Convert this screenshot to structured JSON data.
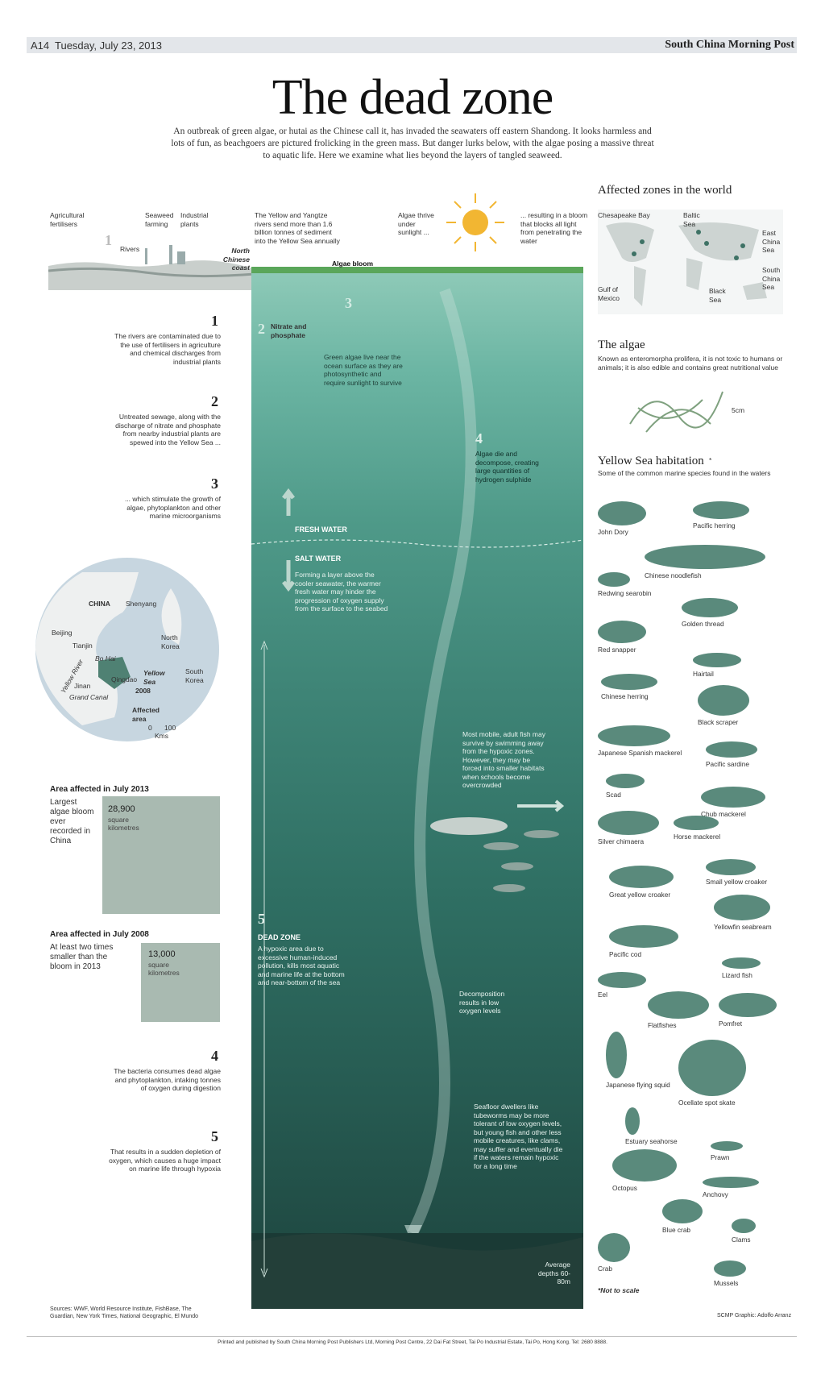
{
  "header": {
    "page": "A14",
    "date": "Tuesday, July 23, 2013",
    "masthead": "South China Morning Post"
  },
  "title": "The dead zone",
  "intro": "An outbreak of green algae, or hutai as the Chinese call it, has invaded the seawaters off eastern Shandong.  It looks harmless and lots of fun, as beachgoers are pictured frolicking in the green mass. But danger lurks below, with the algae posing a massive threat to aquatic life. Here we examine what lies beyond the layers of tangled seaweed.",
  "coast": {
    "agri": "Agricultural fertilisers",
    "seaweed": "Seaweed farming",
    "industrial": "Industrial plants",
    "rivers": "Rivers",
    "north_coast": "North Chinese coast",
    "n1": "1"
  },
  "sea_labels": {
    "rivers_text": "The Yellow and Yangtze rivers send more than 1.6 billion tonnes of sediment into the Yellow Sea annually",
    "algae_thrive": "Algae thrive under sunlight ...",
    "bloom_text": "... resulting in a bloom that blocks all light from penetrating the water",
    "algae_bloom": "Algae bloom",
    "n2": "2",
    "nitrate": "Nitrate and phosphate",
    "n3": "3",
    "green_algae": "Green algae live near the ocean surface as they are photosynthetic and require sunlight to survive",
    "n4": "4",
    "algae_die": "Algae die and decompose, creating large quantities of hydrogen sulphide",
    "fresh": "FRESH WATER",
    "salt": "SALT WATER",
    "layer_text": "Forming a layer above the cooler seawater, the warmer fresh water may hinder the progression of oxygen supply from the surface to the seabed",
    "fish_text": "Most mobile, adult fish may survive by swimming away from the hypoxic zones. However, they may be forced into smaller habitats when schools become overcrowded",
    "n5": "5",
    "dead_zone": "DEAD ZONE",
    "dead_text": "A hypoxic area due to excessive human-induced pollution, kills most aquatic and marine life at the bottom and near-bottom of the sea",
    "decomp": "Decomposition results in low oxygen levels",
    "seafloor": "Seafloor dwellers like tubeworms may be more tolerant of low oxygen levels, but young fish and other less mobile creatures, like clams, may suffer and eventually die if the waters remain hypoxic for a long time",
    "depth": "Average depths 60-80m"
  },
  "steps": [
    {
      "n": "1",
      "text": "The rivers are contaminated due to the use of fertilisers in agriculture and chemical discharges from industrial plants"
    },
    {
      "n": "2",
      "text": "Untreated sewage, along with the discharge of nitrate and phosphate from nearby industrial plants are spewed into the Yellow Sea ..."
    },
    {
      "n": "3",
      "text": "... which stimulate the growth of algae, phytoplankton and other marine microorganisms"
    },
    {
      "n": "4",
      "text": "The bacteria consumes dead algae and phytoplankton, intaking tonnes of oxygen during digestion"
    },
    {
      "n": "5",
      "text": "That results in a sudden depletion of oxygen, which causes a huge impact on marine life through hypoxia"
    }
  ],
  "map": {
    "china": "CHINA",
    "shenyang": "Shenyang",
    "beijing": "Beijing",
    "tianjin": "Tianjin",
    "bohai": "Bo Hai",
    "north_korea": "North Korea",
    "south_korea": "South Korea",
    "yellow_sea": "Yellow Sea",
    "jinan": "Jinan",
    "qingdao": "Qingdao",
    "y2008": "2008",
    "affected": "Affected area",
    "grand_canal": "Grand Canal",
    "yellow_river": "Yellow River",
    "scale0": "0",
    "scale100": "100",
    "kms": "Kms"
  },
  "areas": [
    {
      "title": "Area affected in July 2013",
      "desc": "Largest algae bloom ever recorded in China",
      "value": "28,900",
      "unit": "square kilometres"
    },
    {
      "title": "Area affected in July 2008",
      "desc": "At least two times smaller than the bloom in 2013",
      "value": "13,000",
      "unit": "square kilometres"
    }
  ],
  "world": {
    "title": "Affected zones in the world",
    "labels": [
      "Chesapeake Bay",
      "Baltic Sea",
      "East China Sea",
      "South China Sea",
      "Gulf of Mexico",
      "Black Sea"
    ]
  },
  "algae": {
    "title": "The algae",
    "desc": "Known as enteromorpha prolifera, it is not toxic to humans or animals; it is also edible and contains great nutritional value",
    "scale": "5cm"
  },
  "habitat": {
    "title": "Yellow Sea habitation",
    "asterisk": "*",
    "subtitle": "Some of the common marine species found in the waters",
    "species": [
      "John Dory",
      "Pacific herring",
      "Redwing searobin",
      "Chinese noodlefish",
      "Golden thread",
      "Red snapper",
      "Hairtail",
      "Chinese herring",
      "Black scraper",
      "Japanese Spanish mackerel",
      "Pacific sardine",
      "Scad",
      "Chub mackerel",
      "Silver chimaera",
      "Horse mackerel",
      "Great yellow croaker",
      "Small yellow croaker",
      "Yellowfin seabream",
      "Pacific cod",
      "Lizard fish",
      "Eel",
      "Flatfishes",
      "Pomfret",
      "Japanese flying squid",
      "Ocellate spot skate",
      "Estuary seahorse",
      "Prawn",
      "Octopus",
      "Anchovy",
      "Blue crab",
      "Clams",
      "Crab",
      "Mussels"
    ],
    "note": "*Not to scale"
  },
  "footer": {
    "sources": "Sources: WWF, World Resource Institute, FishBase, The Guardian, New York Times, National Geographic, El Mundo",
    "credit": "SCMP Graphic: Adolfo Arranz",
    "printed": "Printed and published by South China Morning Post Publishers Ltd, Morning Post Centre, 22 Dai Fat Street, Tai Po Industrial Estate, Tai Po, Hong Kong. Tel: 2680 8888."
  },
  "colors": {
    "sea_top": "#8fcab8",
    "sea_bottom": "#1d433d",
    "species": "#5a8a7c",
    "box": "#a9bab1"
  }
}
